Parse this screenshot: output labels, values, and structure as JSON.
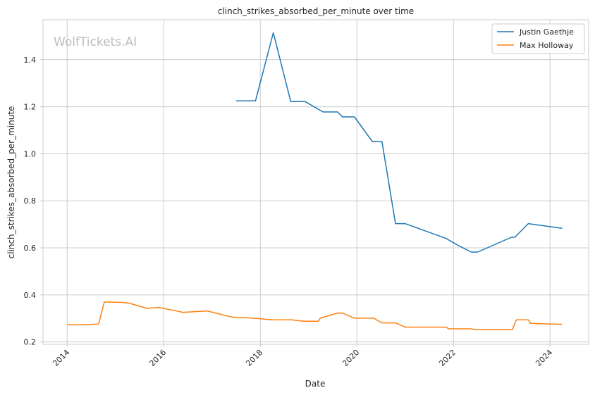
{
  "watermark": "WolfTickets.AI",
  "chart_data": {
    "type": "line",
    "title": "clinch_strikes_absorbed_per_minute over time",
    "xlabel": "Date",
    "ylabel": "clinch_strikes_absorbed_per_minute",
    "xlim": [
      2013.5,
      2024.8
    ],
    "ylim": [
      0.19,
      1.57
    ],
    "x_ticks": [
      2014,
      2016,
      2018,
      2020,
      2022,
      2024
    ],
    "y_ticks": [
      0.2,
      0.4,
      0.6,
      0.8,
      1.0,
      1.2,
      1.4
    ],
    "y_tick_labels": [
      "0.2",
      "0.4",
      "0.6",
      "0.8",
      "1.0",
      "1.2",
      "1.4"
    ],
    "grid": true,
    "legend_position": "top-right",
    "series": [
      {
        "name": "Justin Gaethje",
        "color": "#1f77b4",
        "x": [
          2017.5,
          2017.9,
          2018.27,
          2018.63,
          2018.93,
          2019.3,
          2019.6,
          2019.7,
          2019.95,
          2020.32,
          2020.52,
          2020.8,
          2021.0,
          2021.85,
          2022.1,
          2022.37,
          2022.5,
          2023.2,
          2023.27,
          2023.55,
          2024.25
        ],
        "values": [
          1.225,
          1.225,
          1.515,
          1.222,
          1.222,
          1.178,
          1.178,
          1.157,
          1.157,
          1.052,
          1.052,
          0.703,
          0.703,
          0.64,
          0.61,
          0.582,
          0.582,
          0.645,
          0.645,
          0.703,
          0.683
        ]
      },
      {
        "name": "Max Holloway",
        "color": "#ff7f0e",
        "x": [
          2014.0,
          2014.35,
          2014.65,
          2014.77,
          2015.0,
          2015.15,
          2015.3,
          2015.65,
          2015.9,
          2016.4,
          2016.9,
          2017.4,
          2017.8,
          2018.25,
          2018.65,
          2018.9,
          2019.2,
          2019.25,
          2019.6,
          2019.7,
          2019.95,
          2020.35,
          2020.52,
          2020.8,
          2021.0,
          2021.85,
          2021.9,
          2022.35,
          2022.5,
          2023.22,
          2023.3,
          2023.55,
          2023.6,
          2024.25
        ],
        "values": [
          0.273,
          0.273,
          0.276,
          0.37,
          0.369,
          0.368,
          0.364,
          0.343,
          0.347,
          0.326,
          0.332,
          0.306,
          0.302,
          0.294,
          0.294,
          0.288,
          0.288,
          0.302,
          0.323,
          0.323,
          0.301,
          0.301,
          0.281,
          0.281,
          0.263,
          0.263,
          0.256,
          0.256,
          0.252,
          0.252,
          0.294,
          0.294,
          0.279,
          0.275
        ]
      }
    ]
  }
}
